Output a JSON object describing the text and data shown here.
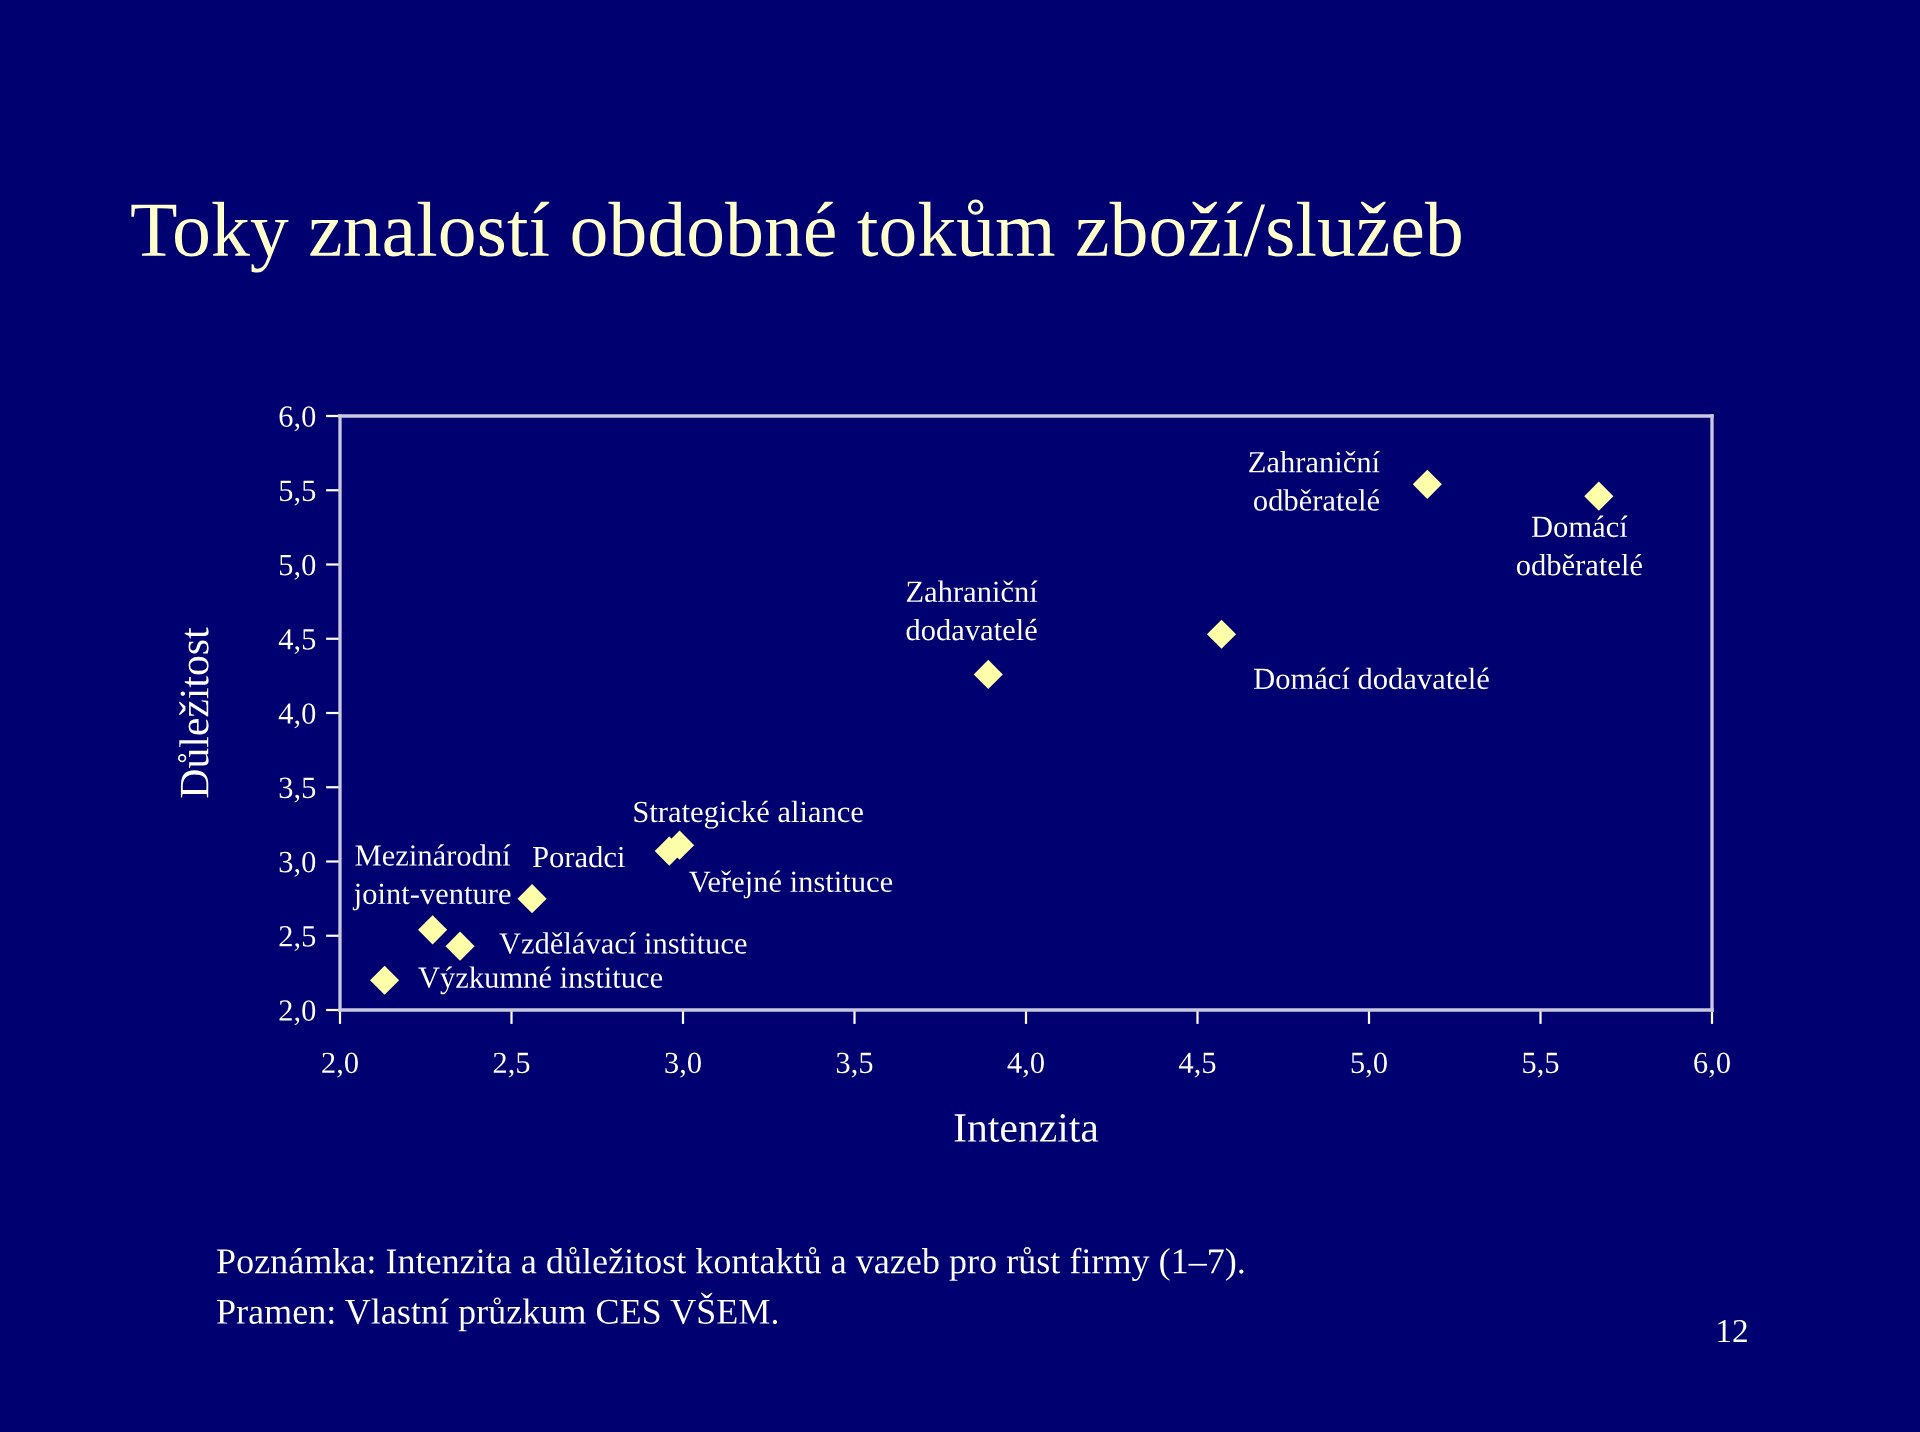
{
  "chart_data": {
    "type": "scatter",
    "title": "Toky znalostí obdobné tokům zboží/služeb",
    "xlabel": "Intenzita",
    "ylabel": "Důležitost",
    "x": [
      2.13,
      2.27,
      2.35,
      2.56,
      2.99,
      2.96,
      3.89,
      4.57,
      5.17,
      5.67
    ],
    "series": [
      {
        "color": "#ffffaa",
        "values": [
          2.2,
          2.54,
          2.43,
          2.75,
          3.11,
          3.07,
          4.26,
          4.53,
          5.54,
          5.46
        ]
      }
    ],
    "marker": "diamond",
    "grid": false,
    "xlim": [
      2.0,
      6.0
    ],
    "ylim": [
      2.0,
      6.0
    ],
    "xticks": [
      {
        "value": 2.0,
        "label": "2,0"
      },
      {
        "value": 2.5,
        "label": "2,5"
      },
      {
        "value": 3.0,
        "label": "3,0"
      },
      {
        "value": 3.5,
        "label": "3,5"
      },
      {
        "value": 4.0,
        "label": "4,0"
      },
      {
        "value": 4.5,
        "label": "4,5"
      },
      {
        "value": 5.0,
        "label": "5,0"
      },
      {
        "value": 5.5,
        "label": "5,5"
      },
      {
        "value": 6.0,
        "label": "6,0"
      }
    ],
    "yticks": [
      {
        "value": 2.0,
        "label": "2,0"
      },
      {
        "value": 2.5,
        "label": "2,5"
      },
      {
        "value": 3.0,
        "label": "3,0"
      },
      {
        "value": 3.5,
        "label": "3,5"
      },
      {
        "value": 4.0,
        "label": "4,0"
      },
      {
        "value": 4.5,
        "label": "4,5"
      },
      {
        "value": 5.0,
        "label": "5,0"
      },
      {
        "value": 5.5,
        "label": "5,5"
      },
      {
        "value": 6.0,
        "label": "6,0"
      }
    ],
    "annotations": [
      {
        "text": "Výzkumné instituce",
        "x": 2.13,
        "y": 2.2
      },
      {
        "text": "Mezinárodní\njoint-venture",
        "x": 2.27,
        "y": 2.54
      },
      {
        "text": "Vzdělávací instituce",
        "x": 2.35,
        "y": 2.43
      },
      {
        "text": "Poradci",
        "x": 2.56,
        "y": 2.75
      },
      {
        "text": "Strategické aliance",
        "x": 2.99,
        "y": 3.11
      },
      {
        "text": "Veřejné instituce",
        "x": 2.96,
        "y": 3.07
      },
      {
        "text": "Zahraniční\ndodavatelé",
        "x": 3.89,
        "y": 4.26
      },
      {
        "text": "Domácí dodavatelé",
        "x": 4.57,
        "y": 4.53
      },
      {
        "text": "Zahraniční\nodběratelé",
        "x": 5.17,
        "y": 5.54
      },
      {
        "text": "Domácí\nodběratelé",
        "x": 5.67,
        "y": 5.46
      },
      "Poznámka: Intenzita a důležitost kontaktů a vazeb pro růst firmy (1–7).",
      "Pramen: Vlastní průzkum CES VŠEM.",
      "12"
    ]
  }
}
